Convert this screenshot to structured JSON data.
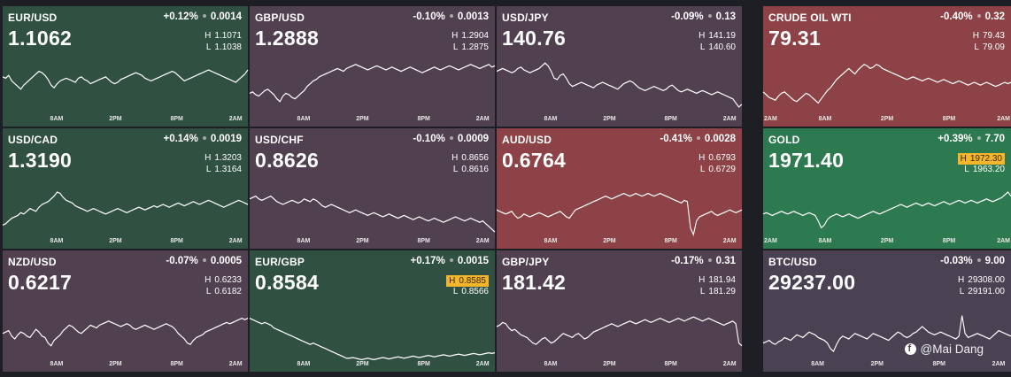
{
  "colors": {
    "up_green": "#305041",
    "green": "#2e7a50",
    "down_purple": "#514050",
    "red": "#8c4246",
    "purple_gray": "#4a4253",
    "highlight": "#f2b52c"
  },
  "tiles": [
    {
      "symbol": "EUR/USD",
      "change": "+0.12%",
      "change_abs": "0.0014",
      "price": "1.1062",
      "high": "1.1071",
      "low": "1.1038",
      "color": "#305041",
      "high_marked": false,
      "low_marked": false,
      "ticks": [
        "8AM",
        "2PM",
        "8PM",
        "2AM"
      ],
      "series": [
        62,
        60,
        64,
        56,
        52,
        48,
        44,
        50,
        54,
        58,
        62,
        66,
        70,
        68,
        64,
        58,
        50,
        46,
        52,
        56,
        58,
        60,
        58,
        56,
        54,
        60,
        62,
        58,
        56,
        52,
        54,
        56,
        58,
        60,
        62,
        58,
        54,
        52,
        54,
        58,
        60,
        62,
        64,
        66,
        68,
        66,
        64,
        60,
        58,
        56,
        58,
        60,
        62,
        64,
        66,
        68,
        70,
        68,
        64,
        60,
        56,
        58,
        60,
        62,
        64,
        66,
        68,
        70,
        72,
        70,
        68,
        66,
        64,
        62,
        60,
        58,
        56,
        54,
        58,
        62,
        66,
        72
      ]
    },
    {
      "symbol": "GBP/USD",
      "change": "-0.10%",
      "change_abs": "0.0013",
      "price": "1.2888",
      "high": "1.2904",
      "low": "1.2875",
      "color": "#514050",
      "high_marked": false,
      "low_marked": false,
      "ticks": [
        "8AM",
        "2PM",
        "8PM",
        "2AM"
      ],
      "series": [
        38,
        40,
        36,
        34,
        38,
        42,
        44,
        40,
        36,
        30,
        26,
        34,
        38,
        36,
        32,
        30,
        34,
        38,
        42,
        48,
        52,
        56,
        58,
        62,
        64,
        66,
        68,
        70,
        72,
        74,
        72,
        70,
        74,
        76,
        78,
        80,
        78,
        76,
        74,
        72,
        74,
        76,
        78,
        76,
        74,
        72,
        74,
        76,
        74,
        72,
        70,
        72,
        74,
        76,
        74,
        72,
        70,
        68,
        70,
        72,
        74,
        76,
        74,
        72,
        74,
        76,
        78,
        76,
        74,
        72,
        74,
        76,
        78,
        80,
        78,
        76,
        74,
        76,
        78,
        80,
        76,
        78
      ]
    },
    {
      "symbol": "USD/JPY",
      "change": "-0.09%",
      "change_abs": "0.13",
      "price": "140.76",
      "high": "141.19",
      "low": "140.60",
      "color": "#514050",
      "high_marked": false,
      "low_marked": false,
      "ticks": [
        "8AM",
        "2PM",
        "8PM",
        "2AM"
      ],
      "series": [
        70,
        72,
        74,
        72,
        70,
        68,
        70,
        74,
        76,
        72,
        70,
        68,
        70,
        72,
        74,
        78,
        82,
        78,
        70,
        60,
        58,
        64,
        66,
        60,
        52,
        48,
        50,
        52,
        54,
        52,
        50,
        48,
        46,
        50,
        52,
        54,
        52,
        50,
        48,
        46,
        44,
        48,
        52,
        54,
        56,
        54,
        50,
        46,
        44,
        42,
        44,
        46,
        48,
        46,
        44,
        42,
        44,
        48,
        50,
        46,
        42,
        40,
        42,
        44,
        42,
        40,
        38,
        40,
        42,
        40,
        38,
        36,
        38,
        40,
        38,
        36,
        34,
        32,
        30,
        24,
        18,
        22
      ]
    },
    {
      "symbol": "CRUDE OIL WTI",
      "change": "-0.40%",
      "change_abs": "0.32",
      "price": "79.31",
      "high": "79.43",
      "low": "79.09",
      "color": "#8c4246",
      "high_marked": false,
      "low_marked": false,
      "ticks": [
        "2AM",
        "8AM",
        "2PM",
        "8PM",
        "2AM"
      ],
      "series": [
        40,
        36,
        32,
        30,
        28,
        34,
        38,
        40,
        36,
        32,
        28,
        26,
        30,
        34,
        38,
        36,
        32,
        28,
        24,
        30,
        36,
        42,
        46,
        52,
        58,
        62,
        66,
        70,
        74,
        70,
        66,
        72,
        76,
        80,
        78,
        74,
        76,
        80,
        78,
        74,
        72,
        70,
        68,
        66,
        64,
        62,
        60,
        58,
        60,
        62,
        60,
        58,
        56,
        58,
        60,
        58,
        56,
        54,
        56,
        58,
        56,
        54,
        52,
        54,
        56,
        54,
        52,
        50,
        52,
        54,
        52,
        50,
        52,
        54,
        52,
        50,
        48,
        50,
        52,
        54,
        52,
        54
      ]
    },
    {
      "symbol": "USD/CAD",
      "change": "+0.14%",
      "change_abs": "0.0019",
      "price": "1.3190",
      "high": "1.3203",
      "low": "1.3164",
      "color": "#305041",
      "high_marked": false,
      "low_marked": false,
      "ticks": [
        "8AM",
        "2PM",
        "8PM",
        "2AM"
      ],
      "series": [
        24,
        26,
        30,
        34,
        36,
        38,
        42,
        40,
        44,
        48,
        46,
        44,
        50,
        54,
        56,
        58,
        62,
        66,
        72,
        70,
        64,
        60,
        58,
        56,
        52,
        50,
        48,
        46,
        44,
        46,
        48,
        46,
        44,
        42,
        40,
        42,
        44,
        46,
        48,
        46,
        44,
        42,
        44,
        46,
        48,
        50,
        48,
        46,
        48,
        50,
        52,
        50,
        52,
        54,
        52,
        50,
        52,
        54,
        56,
        54,
        52,
        54,
        56,
        58,
        56,
        54,
        56,
        58,
        60,
        58,
        56,
        54,
        52,
        50,
        52,
        54,
        56,
        58,
        60,
        58,
        56,
        54
      ]
    },
    {
      "symbol": "USD/CHF",
      "change": "-0.10%",
      "change_abs": "0.0009",
      "price": "0.8626",
      "high": "0.8656",
      "low": "0.8616",
      "color": "#514050",
      "high_marked": false,
      "low_marked": false,
      "ticks": [
        "8AM",
        "2PM",
        "8PM",
        "2AM"
      ],
      "series": [
        62,
        64,
        66,
        62,
        60,
        62,
        64,
        66,
        62,
        58,
        56,
        54,
        56,
        58,
        60,
        58,
        56,
        58,
        62,
        60,
        58,
        62,
        60,
        56,
        52,
        50,
        52,
        54,
        52,
        50,
        48,
        46,
        44,
        42,
        44,
        46,
        44,
        42,
        40,
        38,
        40,
        42,
        40,
        38,
        36,
        38,
        40,
        38,
        36,
        34,
        36,
        38,
        36,
        34,
        32,
        34,
        36,
        34,
        32,
        30,
        32,
        34,
        32,
        30,
        28,
        30,
        32,
        34,
        36,
        34,
        32,
        30,
        32,
        34,
        32,
        30,
        28,
        30,
        26,
        22,
        18,
        14
      ]
    },
    {
      "symbol": "AUD/USD",
      "change": "-0.41%",
      "change_abs": "0.0028",
      "price": "0.6764",
      "high": "0.6793",
      "low": "0.6729",
      "color": "#8c4246",
      "high_marked": false,
      "low_marked": false,
      "ticks": [
        "8AM",
        "2PM",
        "8PM",
        "2AM"
      ],
      "series": [
        46,
        44,
        42,
        40,
        42,
        44,
        38,
        34,
        36,
        40,
        38,
        36,
        38,
        40,
        42,
        40,
        38,
        36,
        38,
        40,
        42,
        44,
        40,
        36,
        34,
        40,
        46,
        48,
        50,
        52,
        54,
        56,
        58,
        60,
        62,
        64,
        66,
        64,
        62,
        64,
        66,
        68,
        70,
        68,
        66,
        68,
        70,
        68,
        66,
        68,
        70,
        68,
        66,
        68,
        70,
        68,
        66,
        64,
        62,
        60,
        58,
        56,
        60,
        58,
        20,
        10,
        30,
        36,
        38,
        40,
        42,
        44,
        40,
        38,
        40,
        42,
        44,
        46,
        44,
        42,
        44,
        46
      ]
    },
    {
      "symbol": "GOLD",
      "change": "+0.39%",
      "change_abs": "7.70",
      "price": "1971.40",
      "high": "1972.30",
      "low": "1963.20",
      "color": "#2e7a50",
      "high_marked": true,
      "low_marked": false,
      "ticks": [
        "2AM",
        "8AM",
        "2PM",
        "8PM",
        "2AM"
      ],
      "series": [
        40,
        42,
        40,
        38,
        40,
        42,
        44,
        42,
        40,
        42,
        44,
        42,
        40,
        38,
        40,
        42,
        40,
        38,
        30,
        20,
        24,
        32,
        36,
        38,
        40,
        38,
        36,
        38,
        40,
        38,
        36,
        34,
        36,
        38,
        40,
        42,
        44,
        42,
        40,
        42,
        44,
        46,
        48,
        50,
        52,
        54,
        52,
        50,
        52,
        54,
        56,
        54,
        52,
        54,
        56,
        54,
        52,
        54,
        56,
        58,
        56,
        54,
        56,
        58,
        60,
        58,
        56,
        58,
        60,
        58,
        56,
        58,
        60,
        62,
        60,
        58,
        60,
        62,
        64,
        68,
        72,
        66
      ]
    },
    {
      "symbol": "NZD/USD",
      "change": "-0.07%",
      "change_abs": "0.0005",
      "price": "0.6217",
      "high": "0.6233",
      "low": "0.6182",
      "color": "#514050",
      "high_marked": false,
      "low_marked": false,
      "ticks": [
        "8AM",
        "2PM",
        "8PM",
        "2AM"
      ],
      "series": [
        44,
        46,
        48,
        40,
        36,
        42,
        46,
        44,
        40,
        38,
        44,
        50,
        46,
        40,
        38,
        30,
        26,
        34,
        38,
        42,
        48,
        52,
        56,
        54,
        50,
        46,
        44,
        48,
        52,
        56,
        54,
        52,
        56,
        58,
        60,
        62,
        60,
        58,
        56,
        54,
        56,
        58,
        56,
        52,
        50,
        52,
        54,
        56,
        54,
        52,
        50,
        52,
        54,
        56,
        58,
        56,
        54,
        50,
        44,
        40,
        36,
        30,
        28,
        34,
        38,
        40,
        42,
        46,
        48,
        50,
        52,
        54,
        56,
        58,
        60,
        58,
        60,
        62,
        64,
        66,
        64,
        66
      ]
    },
    {
      "symbol": "EUR/GBP",
      "change": "+0.17%",
      "change_abs": "0.0015",
      "price": "0.8584",
      "high": "0.8585",
      "low": "0.8566",
      "color": "#305041",
      "high_marked": true,
      "low_marked": false,
      "ticks": [
        "8AM",
        "2PM",
        "8PM",
        "2AM"
      ],
      "series": [
        66,
        64,
        62,
        60,
        58,
        60,
        58,
        56,
        52,
        50,
        48,
        46,
        44,
        42,
        40,
        38,
        36,
        34,
        32,
        30,
        28,
        30,
        28,
        26,
        24,
        22,
        20,
        18,
        16,
        14,
        12,
        10,
        8,
        8,
        9,
        8,
        7,
        6,
        7,
        8,
        7,
        6,
        7,
        8,
        9,
        8,
        7,
        8,
        9,
        10,
        9,
        8,
        9,
        10,
        11,
        10,
        9,
        10,
        11,
        12,
        11,
        10,
        11,
        12,
        13,
        12,
        11,
        12,
        13,
        14,
        13,
        12,
        13,
        14,
        15,
        14,
        13,
        14,
        15,
        16,
        15,
        16
      ]
    },
    {
      "symbol": "GBP/JPY",
      "change": "-0.17%",
      "change_abs": "0.31",
      "price": "181.42",
      "high": "181.94",
      "low": "181.29",
      "color": "#514050",
      "high_marked": false,
      "low_marked": false,
      "ticks": [
        "8AM",
        "2PM",
        "8PM",
        "2AM"
      ],
      "series": [
        54,
        56,
        60,
        58,
        52,
        48,
        50,
        46,
        42,
        40,
        38,
        34,
        30,
        28,
        32,
        36,
        38,
        34,
        30,
        32,
        36,
        40,
        44,
        42,
        40,
        38,
        42,
        44,
        40,
        36,
        38,
        42,
        46,
        48,
        50,
        52,
        54,
        56,
        58,
        56,
        54,
        56,
        58,
        60,
        62,
        60,
        58,
        60,
        62,
        64,
        62,
        60,
        62,
        64,
        66,
        64,
        62,
        60,
        62,
        64,
        66,
        64,
        62,
        64,
        66,
        68,
        66,
        64,
        62,
        64,
        66,
        64,
        62,
        60,
        58,
        56,
        58,
        60,
        62,
        58,
        30,
        26
      ]
    },
    {
      "symbol": "BTC/USD",
      "change": "-0.03%",
      "change_abs": "9.00",
      "price": "29237.00",
      "high": "29308.00",
      "low": "29191.00",
      "color": "#4a4253",
      "high_marked": false,
      "low_marked": false,
      "ticks": [
        "8AM",
        "2PM",
        "8PM",
        "2AM"
      ],
      "series": [
        30,
        32,
        34,
        30,
        28,
        32,
        34,
        38,
        36,
        34,
        38,
        42,
        40,
        38,
        42,
        46,
        44,
        42,
        38,
        36,
        34,
        30,
        22,
        18,
        28,
        36,
        40,
        38,
        36,
        40,
        44,
        42,
        40,
        38,
        36,
        40,
        44,
        42,
        40,
        38,
        36,
        34,
        38,
        42,
        46,
        44,
        40,
        38,
        40,
        44,
        46,
        50,
        54,
        50,
        46,
        44,
        42,
        44,
        46,
        44,
        42,
        40,
        38,
        36,
        40,
        70,
        44,
        38,
        40,
        42,
        44,
        42,
        40,
        38,
        36,
        40,
        44,
        48,
        46,
        44,
        42,
        40
      ]
    }
  ],
  "watermark": {
    "icon": "facebook-icon",
    "text": "@Mai Dang"
  }
}
